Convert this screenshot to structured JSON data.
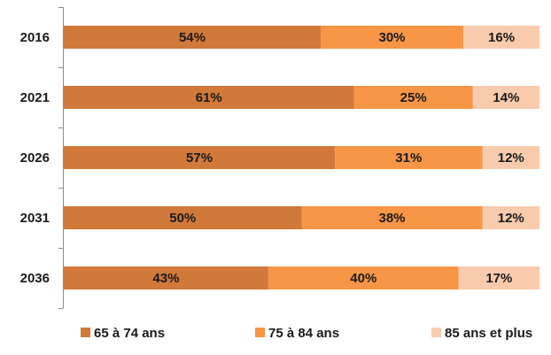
{
  "chart_data": {
    "type": "bar",
    "orientation": "horizontal",
    "stacked": true,
    "percent_stacked": true,
    "categories": [
      "2016",
      "2021",
      "2026",
      "2031",
      "2036"
    ],
    "series": [
      {
        "name": "65 à 74 ans",
        "values": [
          54,
          61,
          57,
          50,
          43
        ],
        "labels": [
          "54%",
          "61%",
          "57%",
          "50%",
          "43%"
        ],
        "color": "#D0793A"
      },
      {
        "name": "75 à 84 ans",
        "values": [
          30,
          25,
          31,
          38,
          40
        ],
        "labels": [
          "30%",
          "25%",
          "31%",
          "38%",
          "40%"
        ],
        "color": "#F79646"
      },
      {
        "name": "85 ans et plus",
        "values": [
          16,
          14,
          12,
          12,
          17
        ],
        "labels": [
          "16%",
          "14%",
          "12%",
          "12%",
          "17%"
        ],
        "color": "#F8CBAD"
      }
    ],
    "xlim": [
      0,
      100
    ],
    "grid": false,
    "legend_position": "bottom"
  }
}
